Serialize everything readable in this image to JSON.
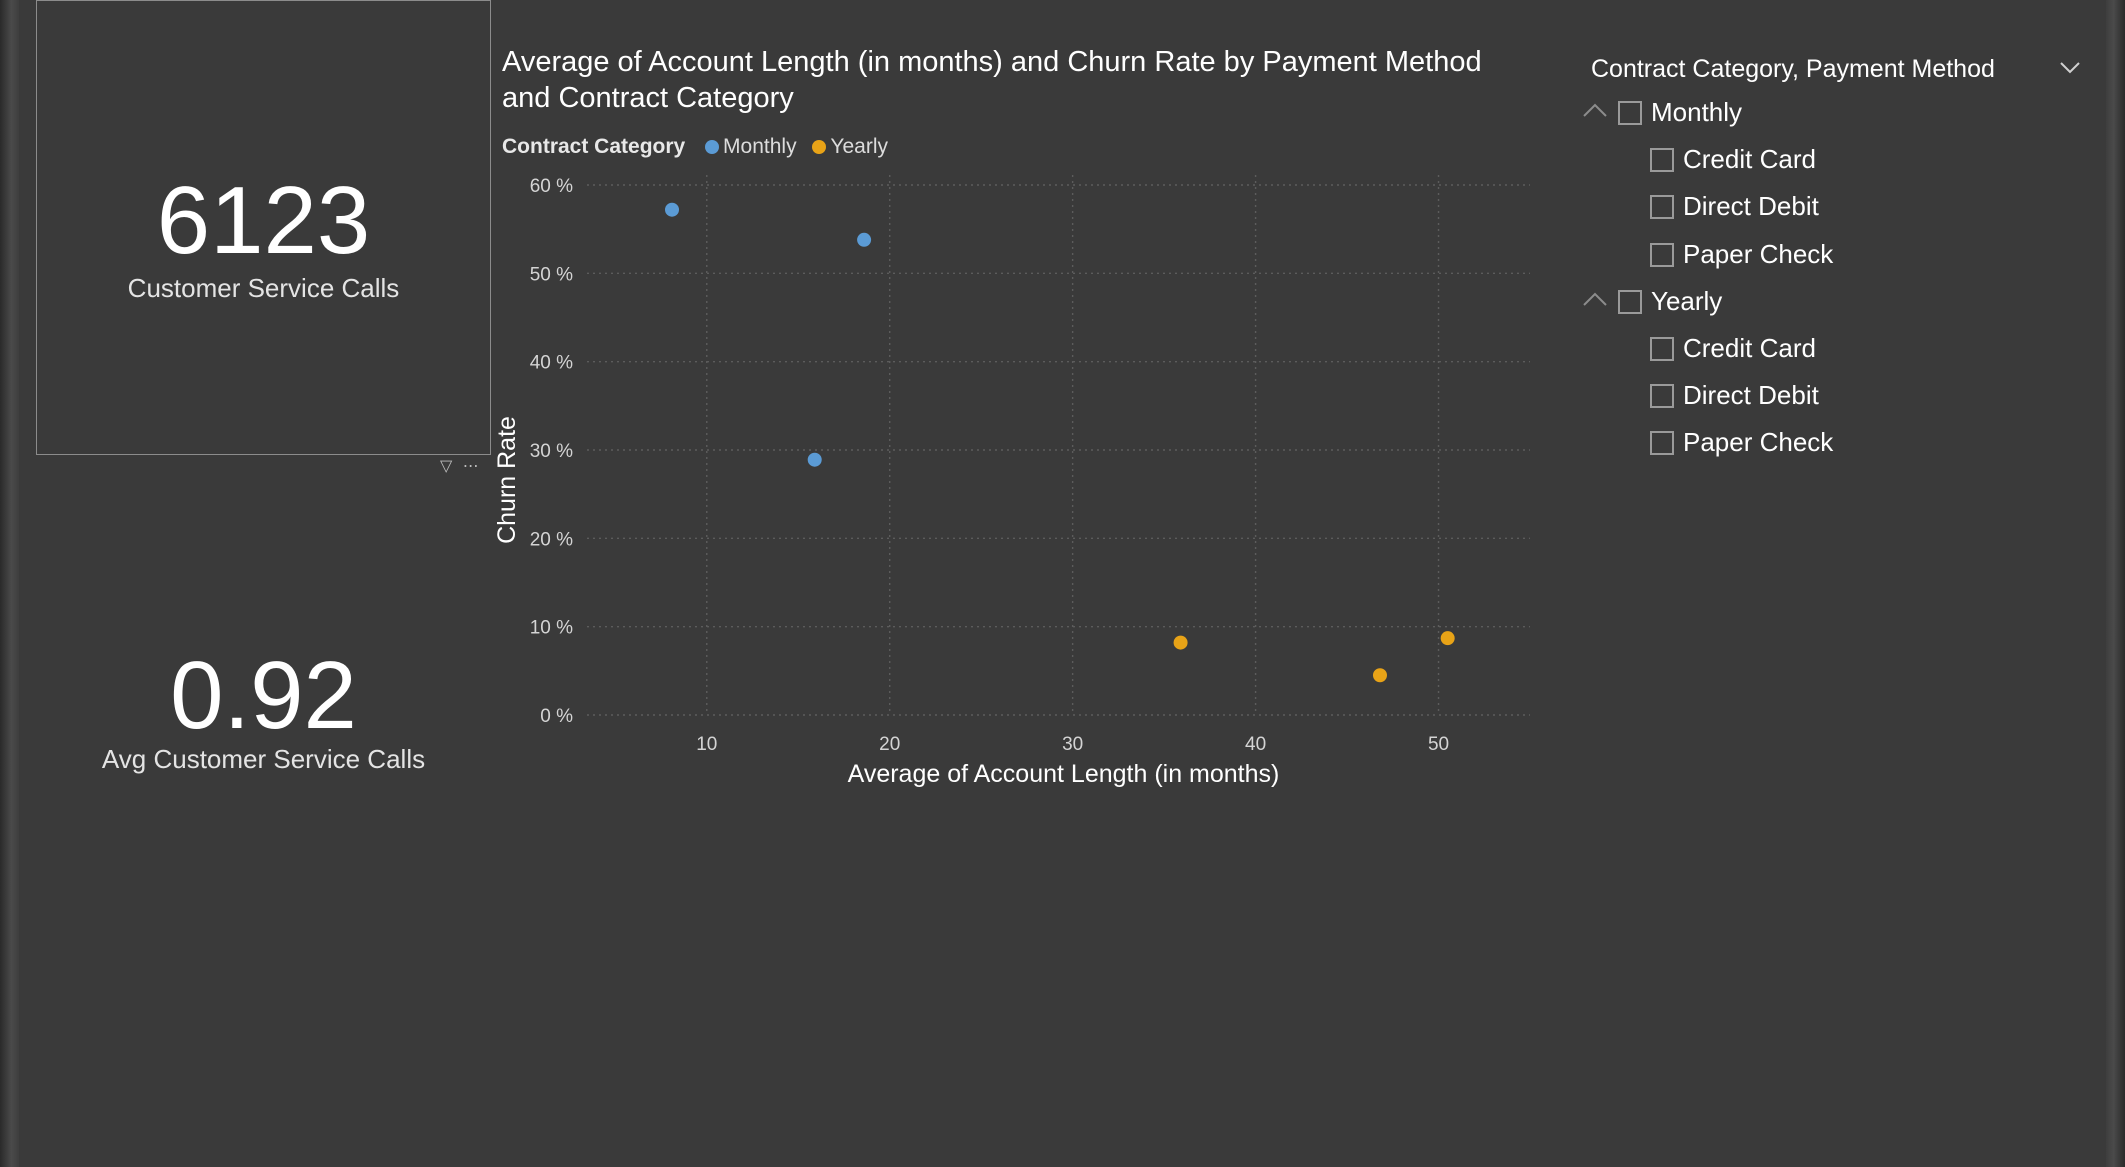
{
  "cards": [
    {
      "value": "6123",
      "label": "Customer Service Calls"
    },
    {
      "value": "0.92",
      "label": "Avg Customer Service Calls"
    }
  ],
  "visual_header_icons": [
    "filter-icon",
    "more-options-icon"
  ],
  "visual_header_glyphs": {
    "filter": "▽",
    "more": "⋯"
  },
  "chart": {
    "title_line1": "Average of Account Length (in months) and Churn Rate by Payment Method",
    "title_line2": "and Contract Category",
    "legend_title": "Contract Category",
    "legend_items": [
      {
        "label": "Monthly",
        "color": "#5b9bd5"
      },
      {
        "label": "Yearly",
        "color": "#e8a317"
      }
    ]
  },
  "chart_data": {
    "type": "scatter",
    "title": "Average of Account Length (in months) and Churn Rate by Payment Method and Contract Category",
    "xlabel": "Average of Account Length (in months)",
    "ylabel": "Churn Rate",
    "xlim": [
      4,
      55
    ],
    "ylim": [
      0,
      60
    ],
    "x_ticks": [
      10,
      20,
      30,
      40,
      50
    ],
    "y_ticks": [
      0,
      10,
      20,
      30,
      40,
      50,
      60
    ],
    "y_tick_labels": [
      "0 %",
      "10 %",
      "20 %",
      "30 %",
      "40 %",
      "50 %",
      "60 %"
    ],
    "grid": true,
    "legend_placement": "top-left",
    "series": [
      {
        "name": "Monthly",
        "color": "#5b9bd5",
        "points": [
          {
            "x": 8.1,
            "y": 57.2
          },
          {
            "x": 18.6,
            "y": 53.8
          },
          {
            "x": 15.9,
            "y": 28.9
          }
        ]
      },
      {
        "name": "Yearly",
        "color": "#e8a317",
        "points": [
          {
            "x": 35.9,
            "y": 8.2
          },
          {
            "x": 50.5,
            "y": 8.7
          },
          {
            "x": 46.8,
            "y": 4.5
          }
        ]
      }
    ]
  },
  "slicer": {
    "title": "Contract Category, Payment Method",
    "groups": [
      {
        "label": "Monthly",
        "items": [
          "Credit Card",
          "Direct Debit",
          "Paper Check"
        ]
      },
      {
        "label": "Yearly",
        "items": [
          "Credit Card",
          "Direct Debit",
          "Paper Check"
        ]
      }
    ]
  }
}
